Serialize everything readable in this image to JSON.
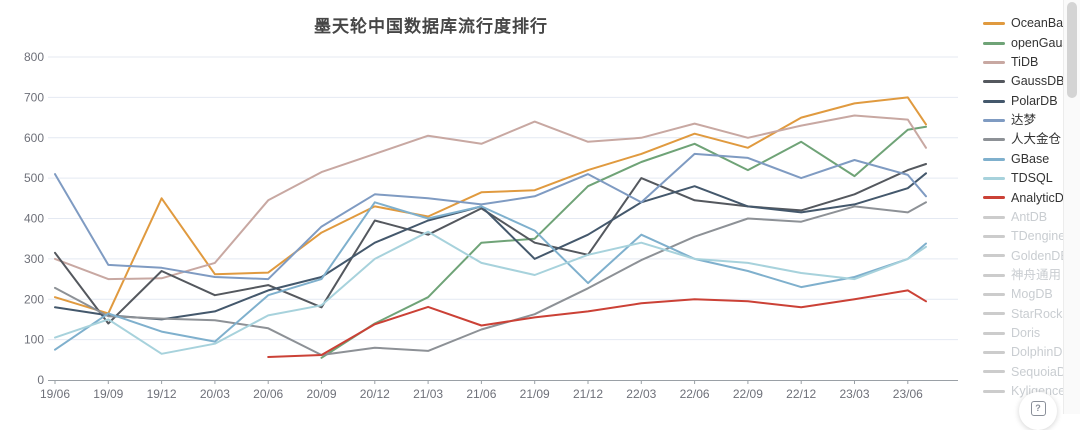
{
  "title": "墨天轮中国数据库流行度排行",
  "help_button": {
    "glyph": "?"
  },
  "chart_data": {
    "type": "line",
    "title": "墨天轮中国数据库流行度排行",
    "xlabel": "",
    "ylabel": "",
    "ylim": [
      0,
      800
    ],
    "y_ticks": [
      0,
      100,
      200,
      300,
      400,
      500,
      600,
      700,
      800
    ],
    "grid": true,
    "legend_position": "right",
    "categories": [
      "19/06",
      "19/09",
      "19/12",
      "20/03",
      "20/06",
      "20/09",
      "20/12",
      "21/03",
      "21/06",
      "21/09",
      "21/12",
      "22/03",
      "22/06",
      "22/09",
      "22/12",
      "23/03",
      "23/06"
    ],
    "note": "series contain one extra trailing point one month past the last axis label",
    "axis_color": "#6E7079",
    "gridline_color": "#E4E9F2",
    "series": [
      {
        "name": "OceanBase",
        "color": "#E09A3F",
        "active": true,
        "values": [
          205,
          165,
          450,
          262,
          266,
          365,
          430,
          405,
          465,
          470,
          520,
          560,
          610,
          575,
          650,
          685,
          700,
          633
        ]
      },
      {
        "name": "openGauss",
        "color": "#6FA377",
        "active": true,
        "values": [
          null,
          null,
          null,
          null,
          null,
          55,
          140,
          205,
          340,
          350,
          480,
          540,
          585,
          520,
          590,
          505,
          620,
          627
        ]
      },
      {
        "name": "TiDB",
        "color": "#C8A8A2",
        "active": true,
        "values": [
          300,
          250,
          252,
          290,
          445,
          515,
          560,
          605,
          585,
          640,
          590,
          600,
          635,
          600,
          630,
          655,
          645,
          575
        ]
      },
      {
        "name": "GaussDB",
        "color": "#54585E",
        "active": true,
        "values": [
          315,
          140,
          270,
          210,
          235,
          180,
          395,
          360,
          425,
          340,
          310,
          500,
          445,
          430,
          420,
          460,
          520,
          535
        ]
      },
      {
        "name": "PolarDB",
        "color": "#44586C",
        "active": true,
        "values": [
          180,
          160,
          150,
          170,
          222,
          255,
          340,
          395,
          430,
          300,
          360,
          440,
          480,
          430,
          415,
          435,
          475,
          512
        ]
      },
      {
        "name": "达梦",
        "color": "#7F9BC2",
        "active": true,
        "values": [
          510,
          285,
          278,
          255,
          250,
          380,
          460,
          450,
          435,
          455,
          510,
          440,
          560,
          550,
          500,
          545,
          508,
          455
        ]
      },
      {
        "name": "人大金仓",
        "color": "#8D9196",
        "active": true,
        "values": [
          228,
          158,
          152,
          148,
          128,
          62,
          80,
          72,
          125,
          163,
          227,
          297,
          355,
          400,
          392,
          430,
          415,
          440
        ]
      },
      {
        "name": "GBase",
        "color": "#7FB0CD",
        "active": true,
        "values": [
          75,
          165,
          120,
          95,
          210,
          250,
          440,
          400,
          430,
          370,
          240,
          360,
          300,
          270,
          230,
          255,
          300,
          338
        ]
      },
      {
        "name": "TDSQL",
        "color": "#A7D2DC",
        "active": true,
        "values": [
          105,
          150,
          65,
          90,
          160,
          185,
          300,
          367,
          290,
          260,
          310,
          340,
          300,
          290,
          265,
          250,
          300,
          330
        ]
      },
      {
        "name": "AnalyticDB",
        "color": "#CB4136",
        "active": true,
        "values": [
          null,
          null,
          null,
          null,
          57,
          62,
          138,
          181,
          135,
          155,
          170,
          190,
          200,
          195,
          180,
          200,
          222,
          195
        ]
      },
      {
        "name": "AntDB",
        "color": "#cccccc",
        "active": false,
        "values": []
      },
      {
        "name": "TDengine",
        "color": "#cccccc",
        "active": false,
        "values": []
      },
      {
        "name": "GoldenDB",
        "color": "#cccccc",
        "active": false,
        "values": []
      },
      {
        "name": "神舟通用",
        "color": "#cccccc",
        "active": false,
        "values": []
      },
      {
        "name": "MogDB",
        "color": "#cccccc",
        "active": false,
        "values": []
      },
      {
        "name": "StarRocks",
        "color": "#cccccc",
        "active": false,
        "values": []
      },
      {
        "name": "Doris",
        "color": "#cccccc",
        "active": false,
        "values": []
      },
      {
        "name": "DolphinDB",
        "color": "#cccccc",
        "active": false,
        "values": []
      },
      {
        "name": "SequoiaDB",
        "color": "#cccccc",
        "active": false,
        "values": []
      },
      {
        "name": "Kyligence",
        "color": "#cccccc",
        "active": false,
        "values": []
      }
    ]
  }
}
